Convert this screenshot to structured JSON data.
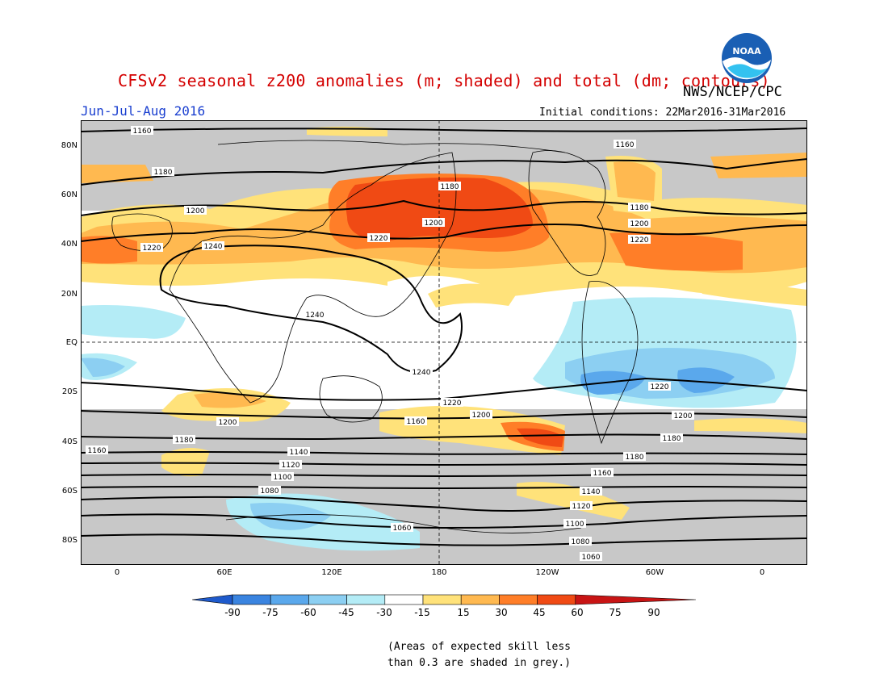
{
  "header": {
    "title": "CFSv2 seasonal z200 anomalies (m; shaded) and total (dm; contours)",
    "agency": "NWS/NCEP/CPC",
    "season": "Jun-Jul-Aug 2016",
    "initial_conditions": "Initial conditions: 22Mar2016-31Mar2016",
    "logo_text": "NOAA"
  },
  "map": {
    "lat_labels": [
      "80N",
      "60N",
      "40N",
      "20N",
      "EQ",
      "20S",
      "40S",
      "60S",
      "80S"
    ],
    "lon_labels": [
      "0",
      "60E",
      "120E",
      "180",
      "120W",
      "60W",
      "0"
    ],
    "contour_labels": [
      "1160",
      "1180",
      "1200",
      "1220",
      "1240",
      "1160",
      "1180",
      "1200",
      "1220",
      "1200",
      "1180",
      "1220",
      "1240",
      "1240",
      "1220",
      "1200",
      "1200",
      "1180",
      "1160",
      "1140",
      "1120",
      "1100",
      "1080",
      "1060",
      "1160",
      "1180",
      "1200",
      "1220",
      "1180",
      "1160",
      "1140",
      "1120",
      "1100",
      "1080",
      "1060"
    ],
    "colors": {
      "skill_grey": "#c8c8c8",
      "pos_15_30": "#ffe27a",
      "pos_30_45": "#ffb950",
      "pos_45_60": "#ff7e28",
      "pos_60_75": "#f04a14",
      "neg_15_30": "#b4ecf6",
      "neg_30_45": "#8ccff2",
      "neg_45_60": "#5aa8ec",
      "neg_60_75": "#3a84e0"
    }
  },
  "colorbar": {
    "labels": [
      "-90",
      "-75",
      "-60",
      "-45",
      "-30",
      "-15",
      "15",
      "30",
      "45",
      "60",
      "75",
      "90"
    ],
    "colors": [
      "#1e5acc",
      "#3a84e0",
      "#5aa8ec",
      "#8ccff2",
      "#b4ecf6",
      "#ffffff",
      "#ffe27a",
      "#ffb950",
      "#ff7e28",
      "#f04a14",
      "#c81414"
    ]
  },
  "footnote": {
    "line1": "(Areas of expected skill less",
    "line2": "than 0.3 are shaded in grey.)"
  }
}
